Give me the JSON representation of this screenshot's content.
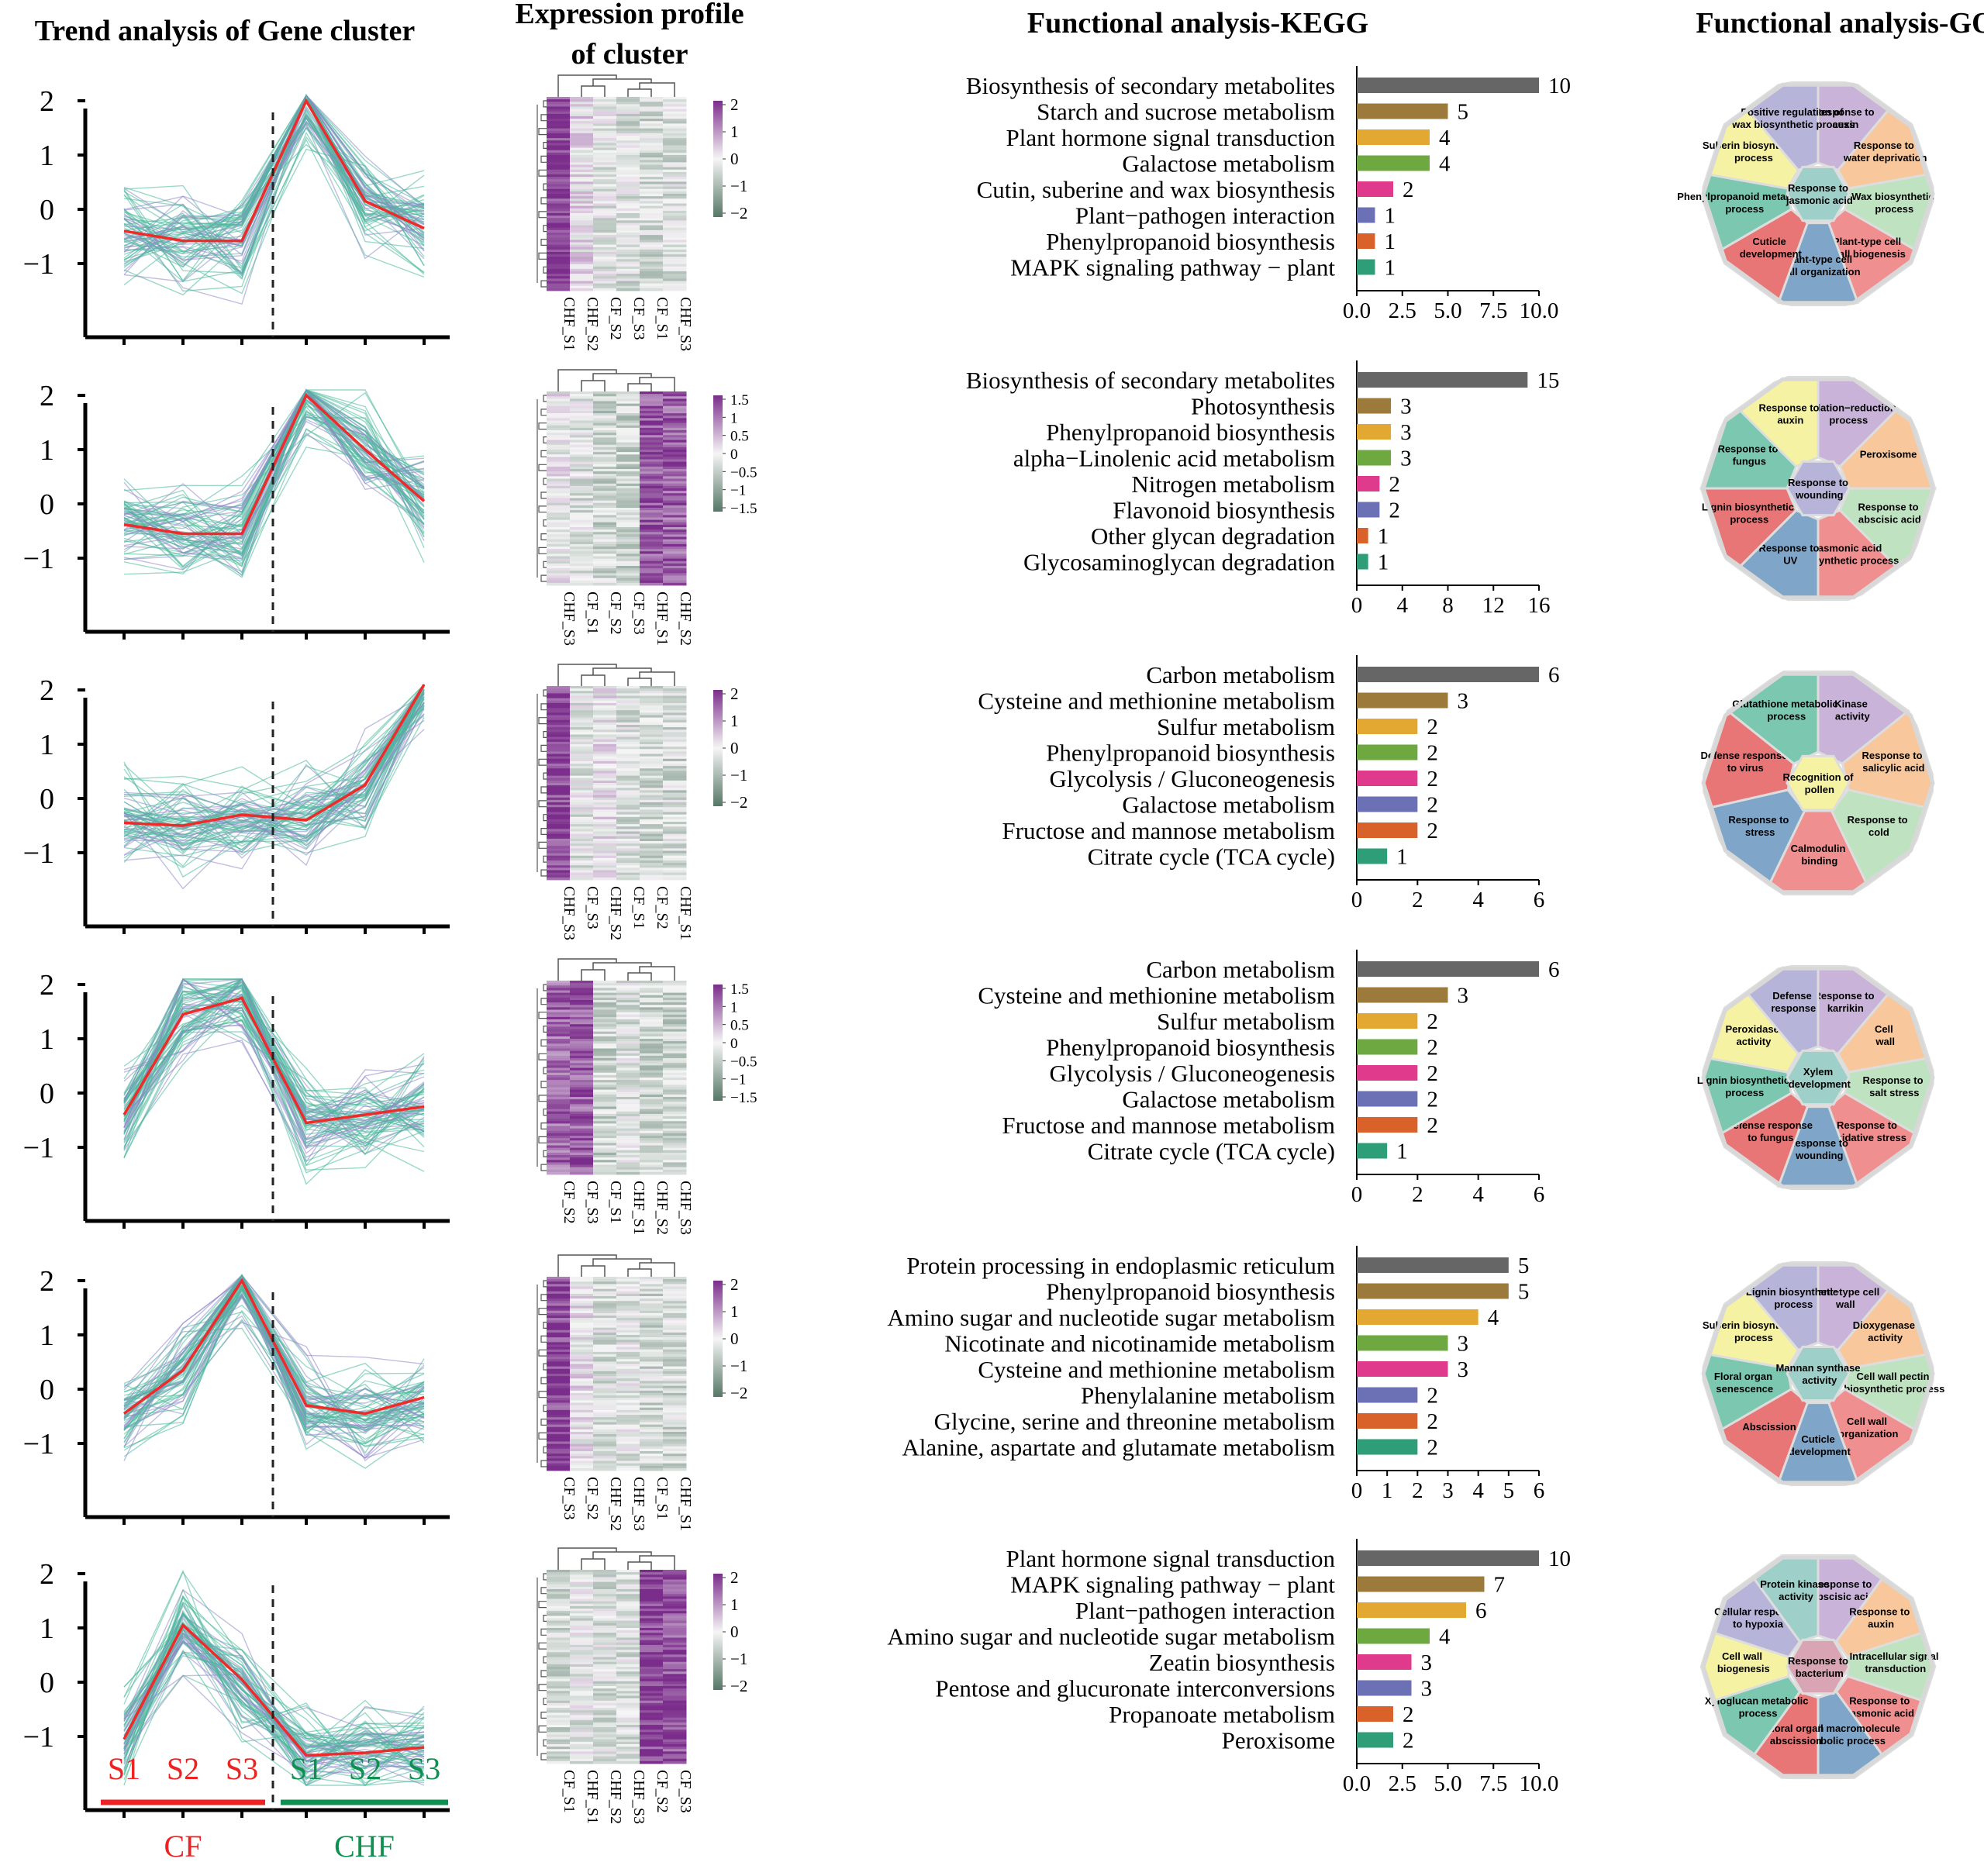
{
  "headers": {
    "trend": "Trend analysis of Gene cluster",
    "expr_line1": "Expression profile",
    "expr_line2": "of cluster",
    "kegg": "Functional analysis-KEGG",
    "go": "Functional analysis-GO"
  },
  "colors": {
    "trend_red": "#ee2a2a",
    "trend_line": "#48b89a",
    "trend_band": "#8f86c8",
    "heat_high": "#7b2d8b",
    "heat_mid": "#f5f5f5",
    "heat_low": "#557766",
    "cf_label": "#ee2222",
    "chf_label": "#109050",
    "bars": [
      "#666666",
      "#9c7a3c",
      "#e3a832",
      "#6ea840",
      "#e03a8c",
      "#6c70b4",
      "#d8622a",
      "#2e9e78"
    ]
  },
  "trend_bottom": {
    "stages_cf": [
      "S1",
      "S2",
      "S3"
    ],
    "stages_chf": [
      "S1",
      "S2",
      "S3"
    ],
    "group_cf": "CF",
    "group_chf": "CHF"
  },
  "clusters": [
    {
      "trend": {
        "yticks": [
          "2",
          "1",
          "0",
          "−1"
        ],
        "mean": [
          -0.4,
          -0.58,
          -0.58,
          2.0,
          0.15,
          -0.35
        ]
      },
      "heatmap": {
        "legend": [
          "2",
          "1",
          "0",
          "−1",
          "−2"
        ],
        "columns": [
          "CHF_S1",
          "CHF_S2",
          "CF_S2",
          "CF_S3",
          "CF_S1",
          "CHF_S3"
        ],
        "col_means": [
          1.8,
          0.2,
          -0.2,
          -0.3,
          -0.4,
          -0.3
        ]
      },
      "chart_data": {
        "type": "bar",
        "orientation": "horizontal",
        "title": "Functional analysis-KEGG",
        "categories": [
          "Biosynthesis of secondary metabolites",
          "Starch and sucrose metabolism",
          "Plant hormone signal transduction",
          "Galactose metabolism",
          "Cutin, suberine and wax biosynthesis",
          "Plant−pathogen interaction",
          "Phenylpropanoid biosynthesis",
          "MAPK signaling pathway − plant"
        ],
        "values": [
          10,
          5,
          4,
          4,
          2,
          1,
          1,
          1
        ],
        "xlim": [
          0,
          10
        ],
        "xtick_values": [
          0,
          2.5,
          5,
          7.5,
          10
        ],
        "xtick_labels": [
          "0.0",
          "2.5",
          "5.0",
          "7.5",
          "10.0"
        ]
      },
      "go": [
        "Response to auxin",
        "Response to water deprivation",
        "Wax biosynthetic process",
        "Plant-type cell wall biogenesis",
        "Plant-type cell wall organization",
        "Cuticle development",
        "Phenylpropanoid metabolic process",
        "Suberin biosynthetic process",
        "Positive regulation of wax biosynthetic process",
        "Response to jasmonic acid"
      ]
    },
    {
      "trend": {
        "yticks": [
          "2",
          "1",
          "0",
          "−1"
        ],
        "mean": [
          -0.38,
          -0.55,
          -0.55,
          2.0,
          1.0,
          0.05
        ]
      },
      "heatmap": {
        "legend": [
          "1.5",
          "1",
          "0.5",
          "0",
          "−0.5",
          "−1",
          "−1.5"
        ],
        "columns": [
          "CHF_S3",
          "CF_S1",
          "CF_S2",
          "CF_S3",
          "CHF_S1",
          "CHF_S2"
        ],
        "col_means": [
          0.0,
          -0.3,
          -0.5,
          -0.5,
          1.6,
          1.5
        ]
      },
      "chart_data": {
        "type": "bar",
        "orientation": "horizontal",
        "title": "Functional analysis-KEGG",
        "categories": [
          "Biosynthesis of secondary metabolites",
          "Photosynthesis",
          "Phenylpropanoid biosynthesis",
          "alpha−Linolenic acid metabolism",
          "Nitrogen metabolism",
          "Flavonoid biosynthesis",
          "Other glycan degradation",
          "Glycosaminoglycan degradation"
        ],
        "values": [
          15,
          3,
          3,
          3,
          2,
          2,
          1,
          1
        ],
        "xlim": [
          0,
          16
        ],
        "xtick_values": [
          0,
          4,
          8,
          12,
          16
        ],
        "xtick_labels": [
          "0",
          "4",
          "8",
          "12",
          "16"
        ]
      },
      "go": [
        "Oxidation−reduction process",
        "Peroxisome",
        "Response to abscisic acid",
        "Jasmonic acid biosynthetic process",
        "Response to UV",
        "Lignin biosynthetic process",
        "Response to fungus",
        "Response to auxin",
        "Response to wounding"
      ]
    },
    {
      "trend": {
        "yticks": [
          "2",
          "1",
          "0",
          "−1"
        ],
        "mean": [
          -0.45,
          -0.5,
          -0.3,
          -0.4,
          0.25,
          2.1
        ]
      },
      "heatmap": {
        "legend": [
          "2",
          "1",
          "0",
          "−1",
          "−2"
        ],
        "columns": [
          "CHF_S3",
          "CF_S3",
          "CHF_S2",
          "CF_S1",
          "CF_S2",
          "CHF_S1"
        ],
        "col_means": [
          1.8,
          -0.2,
          0.1,
          -0.3,
          -0.4,
          -0.4
        ]
      },
      "chart_data": {
        "type": "bar",
        "orientation": "horizontal",
        "title": "Functional analysis-KEGG",
        "categories": [
          "Carbon metabolism",
          "Cysteine and methionine metabolism",
          "Sulfur metabolism",
          "Phenylpropanoid biosynthesis",
          "Glycolysis / Gluconeogenesis",
          "Galactose metabolism",
          "Fructose and mannose metabolism",
          "Citrate cycle (TCA cycle)"
        ],
        "values": [
          6,
          3,
          2,
          2,
          2,
          2,
          2,
          1
        ],
        "xlim": [
          0,
          6
        ],
        "xtick_values": [
          0,
          2,
          4,
          6
        ],
        "xtick_labels": [
          "0",
          "2",
          "4",
          "6"
        ]
      },
      "go": [
        "Kinase activity",
        "Response to salicylic acid",
        "Response to cold",
        "Calmodulin binding",
        "Response to stress",
        "Defense response to virus",
        "Glutathione metabolic process",
        "Recognition of pollen"
      ]
    },
    {
      "trend": {
        "yticks": [
          "2",
          "1",
          "0",
          "−1"
        ],
        "mean": [
          -0.4,
          1.45,
          1.75,
          -0.55,
          -0.4,
          -0.25
        ]
      },
      "heatmap": {
        "legend": [
          "1.5",
          "1",
          "0.5",
          "0",
          "−0.5",
          "−1",
          "−1.5"
        ],
        "columns": [
          "CF_S2",
          "CF_S3",
          "CF_S1",
          "CHF_S1",
          "CHF_S2",
          "CHF_S3"
        ],
        "col_means": [
          1.4,
          1.5,
          -0.5,
          -0.3,
          -0.5,
          -0.5
        ]
      },
      "chart_data": {
        "type": "bar",
        "orientation": "horizontal",
        "title": "Functional analysis-KEGG",
        "categories": [
          "Carbon metabolism",
          "Cysteine and methionine metabolism",
          "Sulfur metabolism",
          "Phenylpropanoid biosynthesis",
          "Glycolysis / Gluconeogenesis",
          "Galactose metabolism",
          "Fructose and mannose metabolism",
          "Citrate cycle (TCA cycle)"
        ],
        "values": [
          6,
          3,
          2,
          2,
          2,
          2,
          2,
          1
        ],
        "xlim": [
          0,
          6
        ],
        "xtick_values": [
          0,
          2,
          4,
          6
        ],
        "xtick_labels": [
          "0",
          "2",
          "4",
          "6"
        ]
      },
      "go": [
        "Response to karrikin",
        "Cell wall",
        "Response to salt stress",
        "Response to oxidative stress",
        "Response to wounding",
        "Defense response to fungus",
        "Lignin biosynthetic process",
        "Peroxidase activity",
        "Defense response",
        "Xylem development"
      ]
    },
    {
      "trend": {
        "yticks": [
          "2",
          "1",
          "0",
          "−1"
        ],
        "mean": [
          -0.45,
          0.35,
          2.0,
          -0.3,
          -0.45,
          -0.15
        ]
      },
      "heatmap": {
        "legend": [
          "2",
          "1",
          "0",
          "−1",
          "−2"
        ],
        "columns": [
          "CF_S3",
          "CF_S2",
          "CHF_S2",
          "CHF_S3",
          "CF_S1",
          "CHF_S1"
        ],
        "col_means": [
          1.8,
          0.1,
          -0.3,
          -0.2,
          -0.4,
          -0.4
        ]
      },
      "chart_data": {
        "type": "bar",
        "orientation": "horizontal",
        "title": "Functional analysis-KEGG",
        "categories": [
          "Protein processing in endoplasmic reticulum",
          "Phenylpropanoid biosynthesis",
          "Amino sugar and nucleotide sugar metabolism",
          "Nicotinate and nicotinamide metabolism",
          "Cysteine and methionine metabolism",
          "Phenylalanine metabolism",
          "Glycine, serine and threonine metabolism",
          "Alanine, aspartate and glutamate metabolism"
        ],
        "values": [
          5,
          5,
          4,
          3,
          3,
          2,
          2,
          2
        ],
        "xlim": [
          0,
          6
        ],
        "xtick_values": [
          0,
          1,
          2,
          3,
          4,
          5,
          6
        ],
        "xtick_labels": [
          "0",
          "1",
          "2",
          "3",
          "4",
          "5",
          "6"
        ]
      },
      "go": [
        "Plant−type cell wall",
        "Dioxygenase activity",
        "Cell wall pectin biosynthetic process",
        "Cell wall organization",
        "Cuticle development",
        "Abscission",
        "Floral organ senescence",
        "Suberin biosynthetic process",
        "Lignin biosynthetic process",
        "Mannan synthase activity"
      ]
    },
    {
      "trend": {
        "yticks": [
          "2",
          "1",
          "0",
          "−1"
        ],
        "mean": [
          -1.05,
          1.05,
          0.05,
          -1.35,
          -1.3,
          -1.2
        ]
      },
      "heatmap": {
        "legend": [
          "2",
          "1",
          "0",
          "−1",
          "−2"
        ],
        "columns": [
          "CF_S1",
          "CHF_S1",
          "CHF_S2",
          "CHF_S3",
          "CF_S2",
          "CF_S3"
        ],
        "col_means": [
          -0.4,
          -0.2,
          -0.3,
          -0.3,
          1.8,
          1.6
        ]
      },
      "chart_data": {
        "type": "bar",
        "orientation": "horizontal",
        "title": "Functional analysis-KEGG",
        "categories": [
          "Plant hormone signal transduction",
          "MAPK signaling pathway − plant",
          "Plant−pathogen interaction",
          "Amino sugar and nucleotide sugar metabolism",
          "Zeatin biosynthesis",
          "Pentose and glucuronate interconversions",
          "Propanoate metabolism",
          "Peroxisome"
        ],
        "values": [
          10,
          7,
          6,
          4,
          3,
          3,
          2,
          2
        ],
        "xlim": [
          0,
          10
        ],
        "xtick_values": [
          0,
          2.5,
          5,
          7.5,
          10
        ],
        "xtick_labels": [
          "0.0",
          "2.5",
          "5.0",
          "7.5",
          "10.0"
        ]
      },
      "go": [
        "Response to abscisic acid",
        "Response to auxin",
        "Intracellular signal transduction",
        "Response to jasmonic acid",
        "Cell wall macromolecule catabolic process",
        "Floral organ abscission",
        "Xyloglucan metabolic process",
        "Cell wall biogenesis",
        "Cellular response to hypoxia",
        "Protein kinase activity",
        "Response to bacterium"
      ]
    }
  ]
}
